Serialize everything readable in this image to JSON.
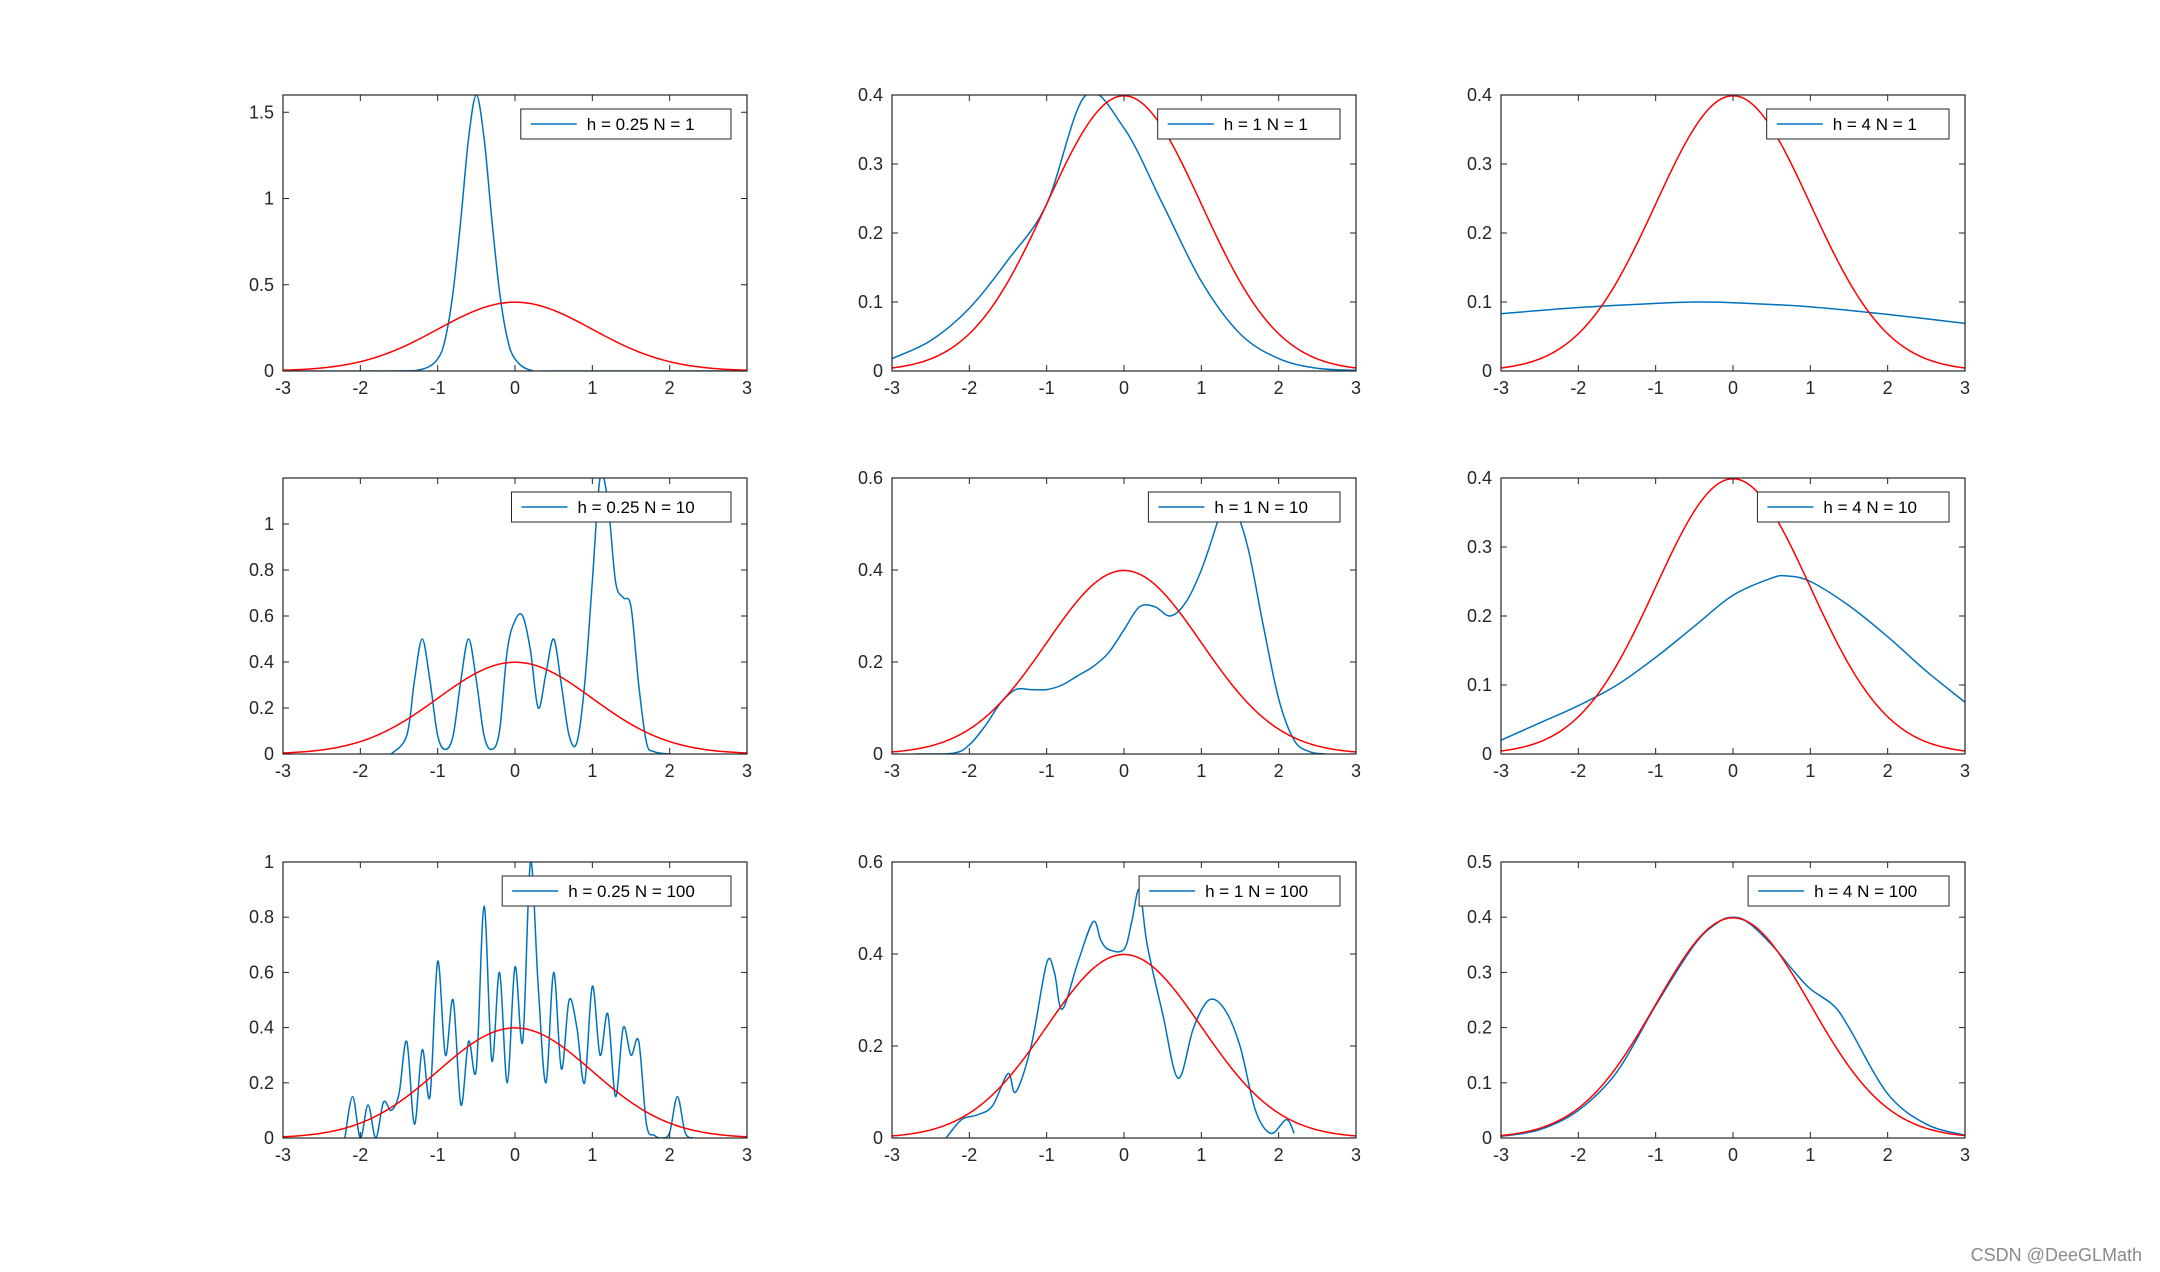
{
  "watermark": "CSDN @DeeGLMath",
  "colors": {
    "estimate": "#0072BD",
    "true_density": "#FF0000",
    "axis": "#262626",
    "background": "#ffffff"
  },
  "chart_data": [
    {
      "type": "line",
      "title": "",
      "legend": "h = 0.25 N = 1",
      "legend_position": "top-right",
      "xlim": [
        -3,
        3
      ],
      "ylim": [
        0,
        1.6
      ],
      "xticks": [
        -3,
        -2,
        -1,
        0,
        1,
        2,
        3
      ],
      "yticks": [
        0,
        0.5,
        1,
        1.5
      ],
      "series": [
        {
          "name": "h = 0.25 N = 1",
          "color": "#0072BD",
          "x": [
            -3,
            -1.6,
            -1.2,
            -1.0,
            -0.9,
            -0.8,
            -0.7,
            -0.6,
            -0.5,
            -0.4,
            -0.3,
            -0.2,
            -0.1,
            0.0,
            0.2,
            0.6,
            3
          ],
          "y": [
            0,
            0,
            0.01,
            0.07,
            0.19,
            0.46,
            0.88,
            1.35,
            1.6,
            1.35,
            0.88,
            0.46,
            0.19,
            0.07,
            0.005,
            0,
            0
          ]
        },
        {
          "color": "#FF0000",
          "gaussian": true,
          "mu": 0,
          "sigma": 1,
          "x_range": [
            -3,
            3
          ]
        }
      ]
    },
    {
      "type": "line",
      "title": "",
      "legend": "h = 1 N = 1",
      "legend_position": "top-right",
      "xlim": [
        -3,
        3
      ],
      "ylim": [
        0,
        0.4
      ],
      "xticks": [
        -3,
        -2,
        -1,
        0,
        1,
        2,
        3
      ],
      "yticks": [
        0,
        0.1,
        0.2,
        0.3,
        0.4
      ],
      "series": [
        {
          "name": "h = 1 N = 1",
          "color": "#0072BD",
          "x": [
            -3,
            -2.5,
            -2,
            -1.5,
            -1,
            -0.5,
            0,
            0.5,
            1,
            1.5,
            2,
            2.5,
            3
          ],
          "y": [
            0.018,
            0.044,
            0.091,
            0.161,
            0.242,
            0.399,
            0.352,
            0.242,
            0.13,
            0.054,
            0.018,
            0.004,
            0.001
          ]
        },
        {
          "color": "#FF0000",
          "gaussian": true,
          "mu": 0,
          "sigma": 1,
          "x_range": [
            -3,
            3
          ]
        }
      ]
    },
    {
      "type": "line",
      "title": "",
      "legend": "h = 4 N = 1",
      "legend_position": "top-right",
      "xlim": [
        -3,
        3
      ],
      "ylim": [
        0,
        0.4
      ],
      "xticks": [
        -3,
        -2,
        -1,
        0,
        1,
        2,
        3
      ],
      "yticks": [
        0,
        0.1,
        0.2,
        0.3,
        0.4
      ],
      "series": [
        {
          "name": "h = 4 N = 1",
          "color": "#0072BD",
          "x": [
            -3,
            -2,
            -1,
            -0.5,
            0,
            1,
            2,
            3
          ],
          "y": [
            0.083,
            0.092,
            0.098,
            0.1,
            0.099,
            0.093,
            0.082,
            0.069
          ]
        },
        {
          "color": "#FF0000",
          "gaussian": true,
          "mu": 0,
          "sigma": 1,
          "x_range": [
            -3,
            3
          ]
        }
      ]
    },
    {
      "type": "line",
      "title": "",
      "legend": "h = 0.25 N = 10",
      "legend_position": "top-right",
      "xlim": [
        -3,
        3
      ],
      "ylim": [
        0,
        1.2
      ],
      "xticks": [
        -3,
        -2,
        -1,
        0,
        1,
        2,
        3
      ],
      "yticks": [
        0,
        0.2,
        0.4,
        0.6,
        0.8,
        1
      ],
      "series": [
        {
          "name": "h = 0.25 N = 10",
          "color": "#0072BD",
          "x": [
            -1.6,
            -1.4,
            -1.3,
            -1.2,
            -1.1,
            -1.0,
            -0.9,
            -0.8,
            -0.7,
            -0.6,
            -0.5,
            -0.4,
            -0.3,
            -0.2,
            -0.1,
            0.0,
            0.1,
            0.2,
            0.3,
            0.4,
            0.5,
            0.6,
            0.7,
            0.8,
            0.9,
            1.0,
            1.1,
            1.2,
            1.3,
            1.4,
            1.5,
            1.6,
            1.7,
            1.8,
            2.0
          ],
          "y": [
            0,
            0.08,
            0.32,
            0.5,
            0.32,
            0.08,
            0.02,
            0.08,
            0.32,
            0.5,
            0.32,
            0.08,
            0.02,
            0.1,
            0.45,
            0.58,
            0.6,
            0.45,
            0.2,
            0.35,
            0.5,
            0.3,
            0.08,
            0.05,
            0.3,
            0.75,
            1.2,
            1.1,
            0.75,
            0.68,
            0.64,
            0.3,
            0.05,
            0.01,
            0
          ]
        },
        {
          "color": "#FF0000",
          "gaussian": true,
          "mu": 0,
          "sigma": 1,
          "x_range": [
            -3,
            3
          ]
        }
      ]
    },
    {
      "type": "line",
      "title": "",
      "legend": "h = 1 N = 10",
      "legend_position": "top-right",
      "xlim": [
        -3,
        3
      ],
      "ylim": [
        0,
        0.6
      ],
      "xticks": [
        -3,
        -2,
        -1,
        0,
        1,
        2,
        3
      ],
      "yticks": [
        0,
        0.2,
        0.4,
        0.6
      ],
      "series": [
        {
          "name": "h = 1 N = 10",
          "color": "#0072BD",
          "x": [
            -2.7,
            -2.2,
            -2.0,
            -1.8,
            -1.6,
            -1.4,
            -1.2,
            -1.0,
            -0.8,
            -0.6,
            -0.4,
            -0.2,
            0.0,
            0.2,
            0.4,
            0.6,
            0.8,
            1.0,
            1.2,
            1.3,
            1.4,
            1.6,
            1.8,
            2.0,
            2.2,
            2.4,
            2.6
          ],
          "y": [
            0,
            0.002,
            0.02,
            0.06,
            0.11,
            0.14,
            0.14,
            0.14,
            0.15,
            0.17,
            0.19,
            0.22,
            0.27,
            0.32,
            0.32,
            0.3,
            0.33,
            0.4,
            0.5,
            0.56,
            0.55,
            0.45,
            0.28,
            0.12,
            0.03,
            0.005,
            0
          ]
        },
        {
          "color": "#FF0000",
          "gaussian": true,
          "mu": 0,
          "sigma": 1,
          "x_range": [
            -3,
            3
          ]
        }
      ]
    },
    {
      "type": "line",
      "title": "",
      "legend": "h = 4 N = 10",
      "legend_position": "top-right",
      "xlim": [
        -3,
        3
      ],
      "ylim": [
        0,
        0.4
      ],
      "xticks": [
        -3,
        -2,
        -1,
        0,
        1,
        2,
        3
      ],
      "yticks": [
        0,
        0.1,
        0.2,
        0.3,
        0.4
      ],
      "series": [
        {
          "name": "h = 4 N = 10",
          "color": "#0072BD",
          "x": [
            -3,
            -2.5,
            -2,
            -1.5,
            -1,
            -0.5,
            0,
            0.5,
            0.7,
            1,
            1.5,
            2,
            2.5,
            3
          ],
          "y": [
            0.02,
            0.045,
            0.07,
            0.1,
            0.14,
            0.185,
            0.23,
            0.255,
            0.258,
            0.25,
            0.215,
            0.17,
            0.12,
            0.075
          ]
        },
        {
          "color": "#FF0000",
          "gaussian": true,
          "mu": 0,
          "sigma": 1,
          "x_range": [
            -3,
            3
          ]
        }
      ]
    },
    {
      "type": "line",
      "title": "",
      "legend": "h = 0.25 N = 100",
      "legend_position": "top-right",
      "xlim": [
        -3,
        3
      ],
      "ylim": [
        0,
        1
      ],
      "xticks": [
        -3,
        -2,
        -1,
        0,
        1,
        2,
        3
      ],
      "yticks": [
        0,
        0.2,
        0.4,
        0.6,
        0.8,
        1
      ],
      "series": [
        {
          "name": "h = 0.25 N = 100",
          "color": "#0072BD",
          "x": [
            -2.2,
            -2.1,
            -2.0,
            -1.9,
            -1.8,
            -1.7,
            -1.6,
            -1.5,
            -1.4,
            -1.3,
            -1.2,
            -1.1,
            -1.0,
            -0.9,
            -0.8,
            -0.7,
            -0.6,
            -0.5,
            -0.4,
            -0.3,
            -0.2,
            -0.1,
            0.0,
            0.1,
            0.2,
            0.3,
            0.4,
            0.5,
            0.6,
            0.7,
            0.8,
            0.9,
            1.0,
            1.1,
            1.2,
            1.3,
            1.4,
            1.5,
            1.6,
            1.7,
            1.8,
            1.9,
            2.0,
            2.1,
            2.2,
            2.3
          ],
          "y": [
            0,
            0.15,
            0,
            0.12,
            0,
            0.13,
            0.1,
            0.16,
            0.35,
            0.05,
            0.32,
            0.15,
            0.64,
            0.3,
            0.5,
            0.12,
            0.35,
            0.25,
            0.84,
            0.28,
            0.6,
            0.2,
            0.62,
            0.35,
            1.0,
            0.55,
            0.2,
            0.6,
            0.25,
            0.5,
            0.4,
            0.2,
            0.55,
            0.3,
            0.45,
            0.15,
            0.4,
            0.3,
            0.35,
            0.05,
            0.01,
            0,
            0.02,
            0.15,
            0.02,
            0
          ]
        },
        {
          "color": "#FF0000",
          "gaussian": true,
          "mu": 0,
          "sigma": 1,
          "x_range": [
            -3,
            3
          ]
        }
      ]
    },
    {
      "type": "line",
      "title": "",
      "legend": "h = 1 N = 100",
      "legend_position": "top-right",
      "xlim": [
        -3,
        3
      ],
      "ylim": [
        0,
        0.6
      ],
      "xticks": [
        -3,
        -2,
        -1,
        0,
        1,
        2,
        3
      ],
      "yticks": [
        0,
        0.2,
        0.4,
        0.6
      ],
      "series": [
        {
          "name": "h = 1 N = 100",
          "color": "#0072BD",
          "x": [
            -2.3,
            -2.1,
            -1.9,
            -1.7,
            -1.5,
            -1.4,
            -1.2,
            -1.0,
            -0.9,
            -0.8,
            -0.6,
            -0.4,
            -0.3,
            -0.2,
            0.0,
            0.1,
            0.2,
            0.3,
            0.5,
            0.7,
            0.9,
            1.1,
            1.3,
            1.5,
            1.7,
            1.9,
            2.1,
            2.2
          ],
          "y": [
            0,
            0.04,
            0.05,
            0.07,
            0.14,
            0.1,
            0.2,
            0.38,
            0.36,
            0.28,
            0.38,
            0.47,
            0.43,
            0.41,
            0.41,
            0.47,
            0.54,
            0.42,
            0.27,
            0.13,
            0.24,
            0.3,
            0.28,
            0.2,
            0.06,
            0.01,
            0.04,
            0.01
          ]
        },
        {
          "color": "#FF0000",
          "gaussian": true,
          "mu": 0,
          "sigma": 1,
          "x_range": [
            -3,
            3
          ]
        }
      ]
    },
    {
      "type": "line",
      "title": "",
      "legend": "h = 4 N = 100",
      "legend_position": "top-right",
      "xlim": [
        -3,
        3
      ],
      "ylim": [
        0,
        0.5
      ],
      "xticks": [
        -3,
        -2,
        -1,
        0,
        1,
        2,
        3
      ],
      "yticks": [
        0,
        0.1,
        0.2,
        0.3,
        0.4,
        0.5
      ],
      "series": [
        {
          "name": "h = 4 N = 100",
          "color": "#0072BD",
          "x": [
            -3,
            -2.5,
            -2,
            -1.5,
            -1,
            -0.5,
            -0.2,
            0,
            0.2,
            0.5,
            0.8,
            1.0,
            1.3,
            1.5,
            2,
            2.5,
            3
          ],
          "y": [
            0.003,
            0.015,
            0.05,
            0.12,
            0.24,
            0.35,
            0.39,
            0.4,
            0.39,
            0.35,
            0.3,
            0.27,
            0.24,
            0.2,
            0.08,
            0.025,
            0.005
          ]
        },
        {
          "color": "#FF0000",
          "gaussian": true,
          "mu": 0,
          "sigma": 1,
          "x_range": [
            -3,
            3
          ]
        }
      ]
    }
  ]
}
